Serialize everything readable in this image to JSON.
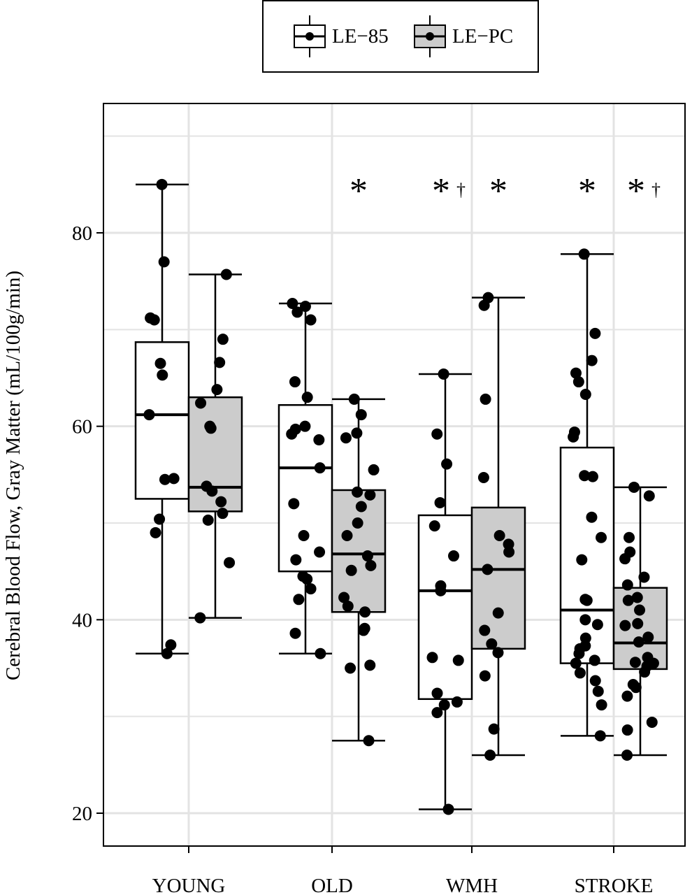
{
  "legend": {
    "items": [
      {
        "label": "LE−85",
        "fill": "#ffffff"
      },
      {
        "label": "LE−PC",
        "fill": "#cccccc"
      }
    ]
  },
  "chart_data": {
    "type": "box",
    "ylabel": "Cerebral Blood Flow, Gray Matter (mL/100g/min)",
    "xlabel": "",
    "categories": [
      "YOUNG",
      "OLD",
      "WMH",
      "STROKE"
    ],
    "yticks": [
      20,
      40,
      60,
      80
    ],
    "ylim": [
      16,
      93
    ],
    "grid": true,
    "legend_position": "top",
    "series": [
      {
        "name": "LE−85",
        "fill": "#ffffff",
        "boxes": [
          {
            "category": "YOUNG",
            "whisker_low": 36.5,
            "q1": 52.5,
            "median": 61.2,
            "q3": 68.7,
            "whisker_high": 85.0,
            "points": [
              85.0,
              77.0,
              71.2,
              71.0,
              66.5,
              65.3,
              61.2,
              54.6,
              54.5,
              50.4,
              49.0,
              37.4,
              36.5
            ]
          },
          {
            "category": "OLD",
            "whisker_low": 36.5,
            "q1": 45.0,
            "median": 55.7,
            "q3": 62.2,
            "whisker_high": 72.7,
            "points": [
              72.7,
              72.4,
              71.8,
              71.0,
              64.6,
              63.0,
              60.0,
              59.7,
              59.2,
              58.6,
              55.7,
              52.0,
              48.7,
              47.0,
              46.2,
              44.5,
              44.2,
              43.2,
              42.1,
              38.6,
              36.5
            ]
          },
          {
            "category": "WMH",
            "whisker_low": 20.4,
            "q1": 31.8,
            "median": 43.0,
            "q3": 50.8,
            "whisker_high": 65.4,
            "points": [
              65.4,
              59.2,
              56.1,
              52.1,
              49.7,
              46.6,
              43.5,
              43.0,
              36.1,
              35.8,
              32.4,
              31.5,
              31.2,
              30.4,
              20.4
            ]
          },
          {
            "category": "STROKE",
            "whisker_low": 28.0,
            "q1": 35.5,
            "median": 41.0,
            "q3": 57.8,
            "whisker_high": 77.8,
            "points": [
              77.8,
              69.6,
              66.8,
              65.5,
              64.6,
              63.3,
              59.4,
              58.9,
              54.9,
              54.8,
              50.6,
              48.5,
              46.2,
              42.1,
              42.0,
              40.0,
              39.5,
              38.1,
              37.3,
              37.0,
              36.5,
              35.8,
              35.5,
              34.5,
              33.7,
              32.6,
              31.2,
              28.0
            ]
          }
        ]
      },
      {
        "name": "LE−PC",
        "fill": "#cccccc",
        "boxes": [
          {
            "category": "YOUNG",
            "whisker_low": 40.2,
            "q1": 51.2,
            "median": 53.7,
            "q3": 63.0,
            "whisker_high": 75.7,
            "points": [
              75.7,
              69.0,
              66.6,
              63.8,
              62.4,
              60.0,
              59.8,
              53.8,
              53.3,
              52.2,
              51.0,
              50.3,
              45.9,
              40.2
            ]
          },
          {
            "category": "OLD",
            "whisker_low": 27.5,
            "q1": 40.8,
            "median": 46.8,
            "q3": 53.4,
            "whisker_high": 62.8,
            "points": [
              62.8,
              61.2,
              59.3,
              58.8,
              55.5,
              53.2,
              52.9,
              51.7,
              50.0,
              48.7,
              46.6,
              45.6,
              45.1,
              42.3,
              41.4,
              40.8,
              39.1,
              38.9,
              35.3,
              35.0,
              27.5
            ]
          },
          {
            "category": "WMH",
            "whisker_low": 26.0,
            "q1": 37.0,
            "median": 45.2,
            "q3": 51.6,
            "whisker_high": 73.3,
            "points": [
              73.3,
              72.5,
              62.8,
              54.7,
              48.7,
              47.8,
              47.0,
              45.2,
              40.7,
              38.9,
              37.5,
              36.6,
              34.2,
              28.7,
              26.0
            ]
          },
          {
            "category": "STROKE",
            "whisker_low": 26.0,
            "q1": 34.9,
            "median": 37.6,
            "q3": 43.3,
            "whisker_high": 53.7,
            "points": [
              53.7,
              52.8,
              48.5,
              47.0,
              46.3,
              44.4,
              43.6,
              42.3,
              42.0,
              41.0,
              39.6,
              39.4,
              38.2,
              37.7,
              36.1,
              35.6,
              35.5,
              35.2,
              34.6,
              33.3,
              33.0,
              32.1,
              29.4,
              28.6,
              26.0
            ]
          }
        ]
      }
    ],
    "annotations": [
      {
        "category": "OLD",
        "series": "LE−PC",
        "text": "*"
      },
      {
        "category": "WMH",
        "series": "LE−85",
        "text": "*†"
      },
      {
        "category": "WMH",
        "series": "LE−PC",
        "text": "*"
      },
      {
        "category": "STROKE",
        "series": "LE−85",
        "text": "*"
      },
      {
        "category": "STROKE",
        "series": "LE−PC",
        "text": "*†"
      }
    ]
  }
}
